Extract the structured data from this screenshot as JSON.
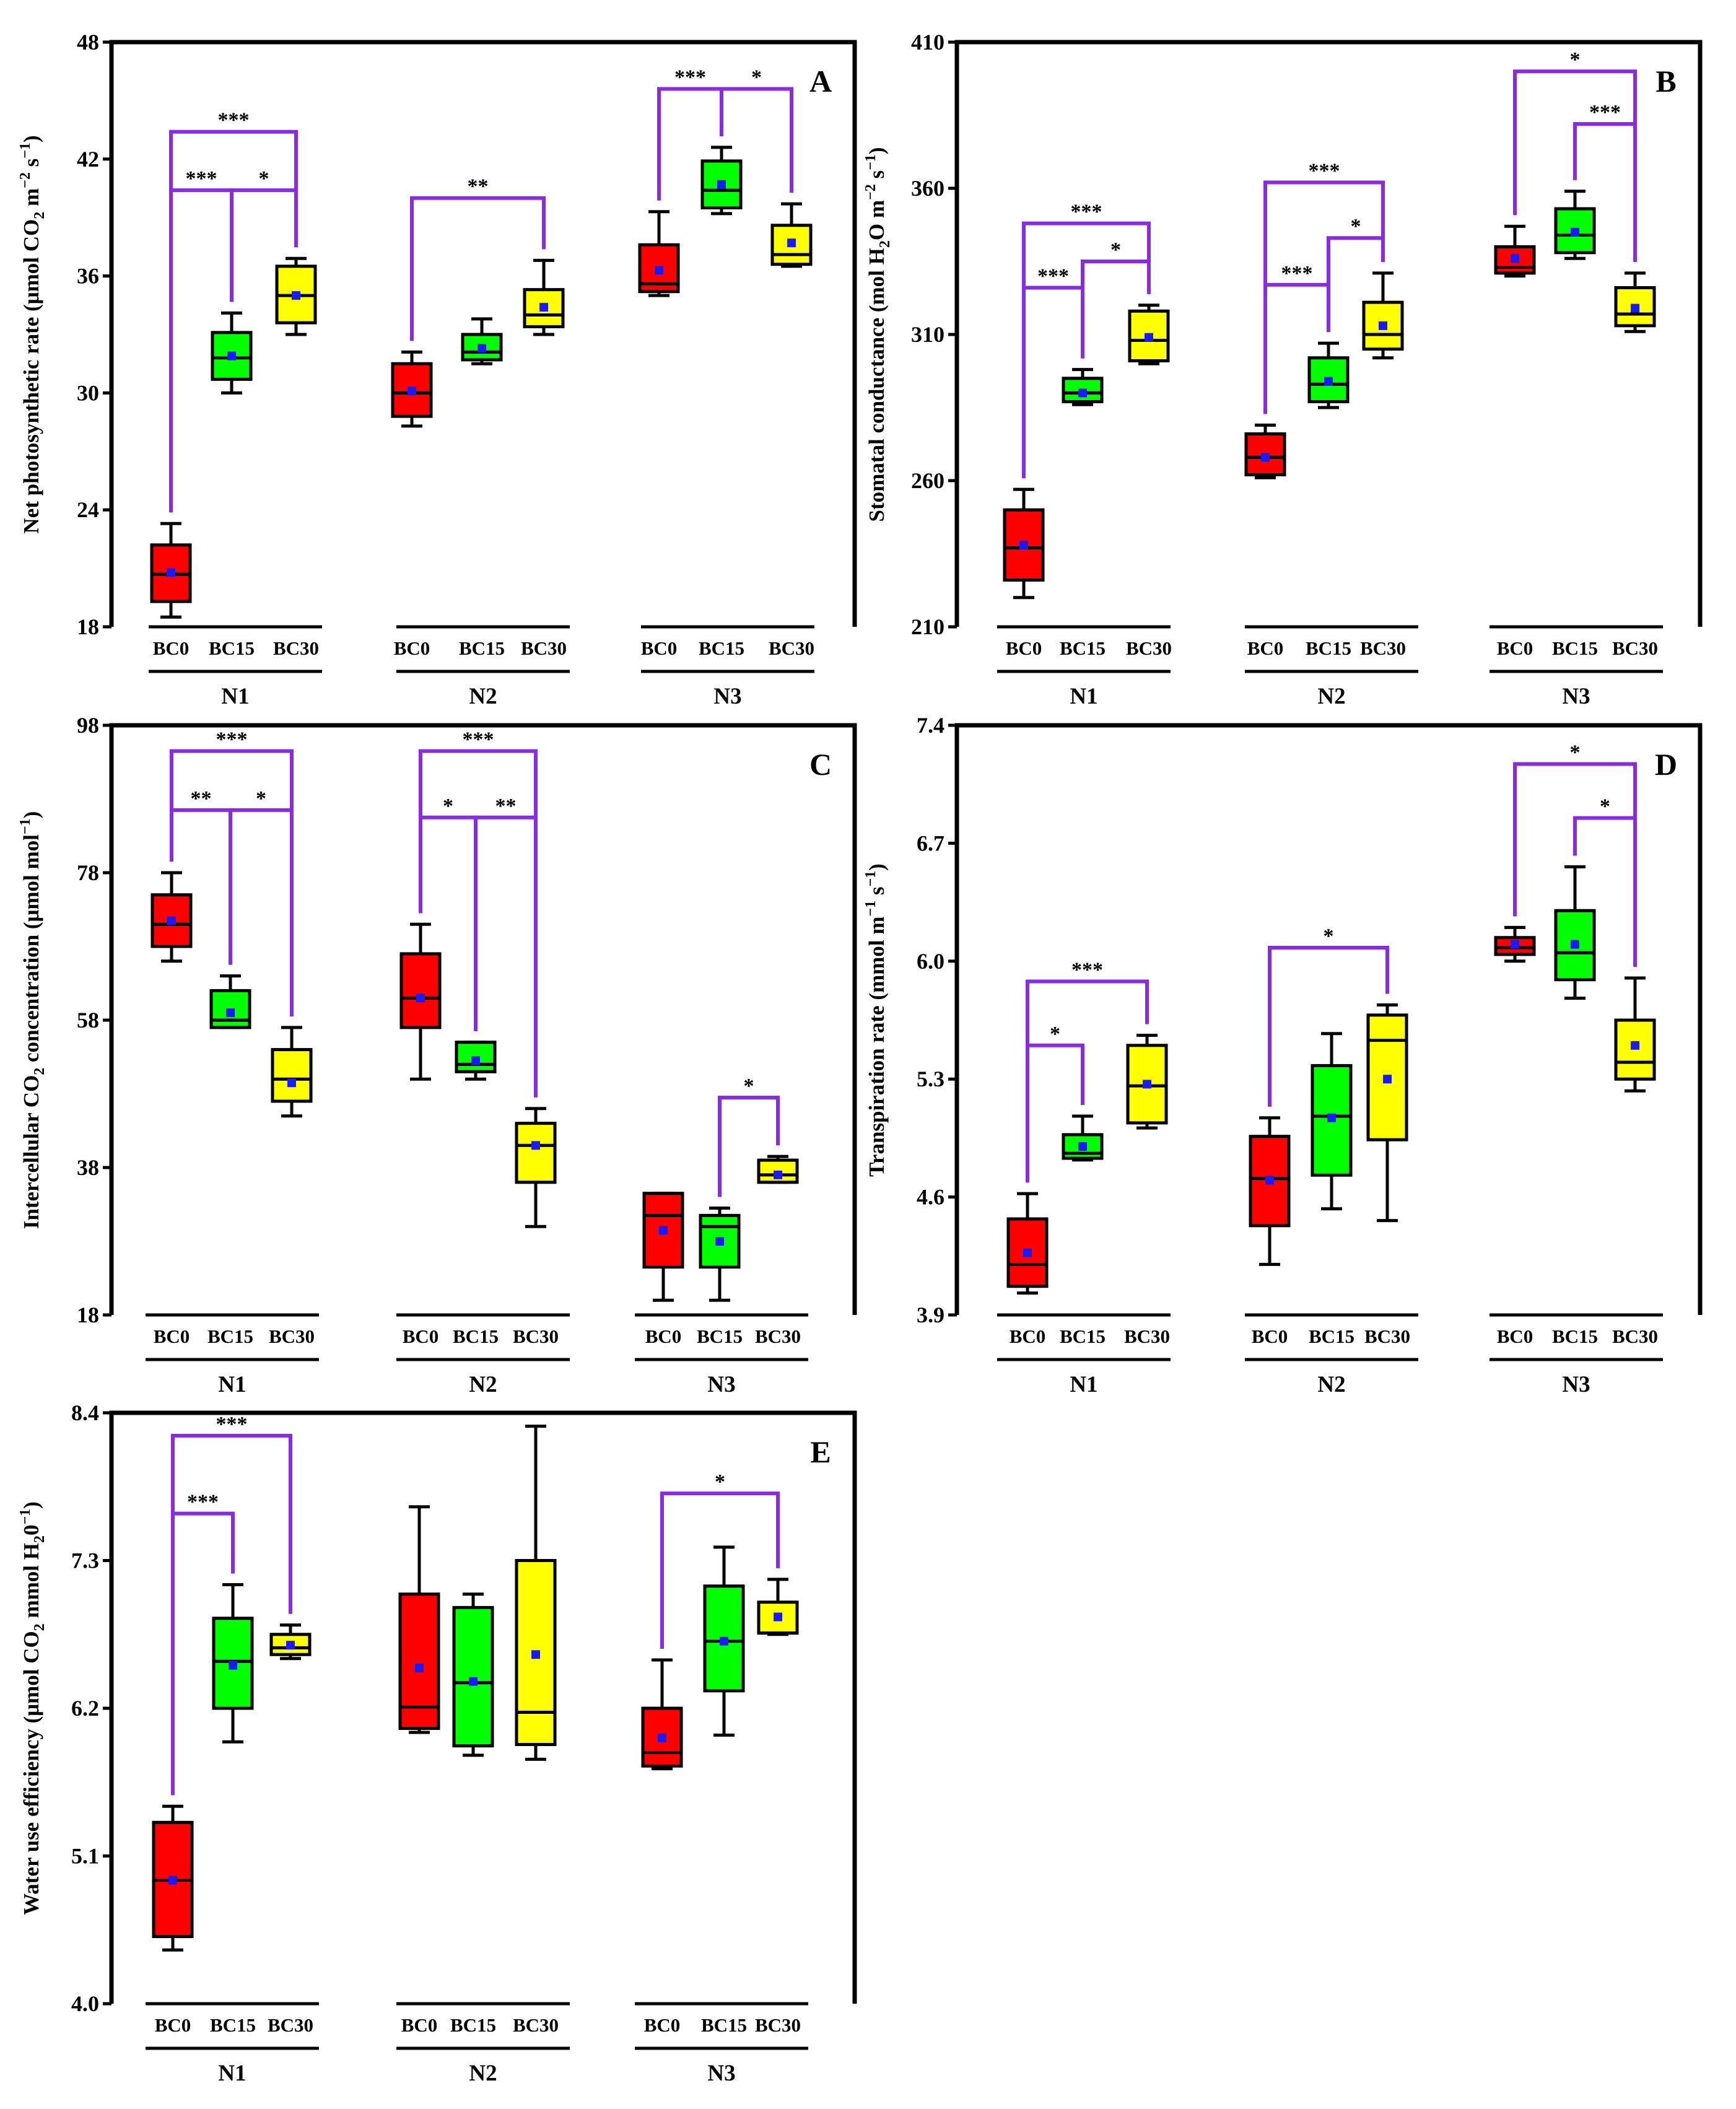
{
  "chart_data": [
    {
      "type": "box",
      "panel_label": "A",
      "ylabel": {
        "pre": "Net photosynthetic rate (μmol CO",
        "sub": "2",
        "mid": " m",
        "sup1": "−2",
        "mid2": " s",
        "sup2": "−1",
        "post": ")"
      },
      "ylim": [
        18,
        48
      ],
      "yticks": [
        18,
        24,
        30,
        36,
        42,
        48
      ],
      "groups": [
        "N1",
        "N2",
        "N3"
      ],
      "categories": [
        "BC0",
        "BC15",
        "BC30"
      ],
      "colors": {
        "BC0": "#ff0000",
        "BC15": "#00ff00",
        "BC30": "#ffff00"
      },
      "boxes": [
        {
          "group": 0,
          "cat": 0,
          "wlo": 18.5,
          "q1": 19.3,
          "median": 20.7,
          "q3": 22.2,
          "whi": 23.3,
          "mean": 20.8
        },
        {
          "group": 0,
          "cat": 1,
          "wlo": 30.0,
          "q1": 30.7,
          "median": 31.8,
          "q3": 33.1,
          "whi": 34.1,
          "mean": 31.9
        },
        {
          "group": 0,
          "cat": 2,
          "wlo": 33.0,
          "q1": 33.6,
          "median": 35.0,
          "q3": 36.5,
          "whi": 36.9,
          "mean": 35.0
        },
        {
          "group": 1,
          "cat": 0,
          "wlo": 28.3,
          "q1": 28.8,
          "median": 30.0,
          "q3": 31.5,
          "whi": 32.1,
          "mean": 30.1
        },
        {
          "group": 1,
          "cat": 1,
          "wlo": 31.5,
          "q1": 31.7,
          "median": 32.1,
          "q3": 33.0,
          "whi": 33.8,
          "mean": 32.3
        },
        {
          "group": 1,
          "cat": 2,
          "wlo": 33.0,
          "q1": 33.4,
          "median": 34.0,
          "q3": 35.3,
          "whi": 36.8,
          "mean": 34.4
        },
        {
          "group": 2,
          "cat": 0,
          "wlo": 35.0,
          "q1": 35.2,
          "median": 35.6,
          "q3": 37.6,
          "whi": 39.3,
          "mean": 36.3
        },
        {
          "group": 2,
          "cat": 1,
          "wlo": 39.2,
          "q1": 39.5,
          "median": 40.4,
          "q3": 41.9,
          "whi": 42.6,
          "mean": 40.7
        },
        {
          "group": 2,
          "cat": 2,
          "wlo": 36.5,
          "q1": 36.6,
          "median": 37.1,
          "q3": 38.6,
          "whi": 39.7,
          "mean": 37.7
        }
      ],
      "brackets": [
        {
          "from": [
            0,
            0
          ],
          "to": [
            0,
            2
          ],
          "y": 43.4,
          "label": "***"
        },
        {
          "from": [
            0,
            0
          ],
          "to": [
            0,
            1
          ],
          "y": 40.4,
          "label": "***"
        },
        {
          "from": [
            0,
            1
          ],
          "to": [
            0,
            2
          ],
          "y": 40.4,
          "label": "*"
        },
        {
          "from": [
            1,
            0
          ],
          "to": [
            1,
            2
          ],
          "y": 40.0,
          "label": "**"
        },
        {
          "from": [
            2,
            0
          ],
          "to": [
            2,
            1
          ],
          "y": 45.6,
          "label": "***"
        },
        {
          "from": [
            2,
            1
          ],
          "to": [
            2,
            2
          ],
          "y": 45.6,
          "label": "*"
        }
      ]
    },
    {
      "type": "box",
      "panel_label": "B",
      "ylabel": {
        "pre": "Stomatal conductance (mol H",
        "sub": "2",
        "mid": "O m",
        "sup1": "−2",
        "mid2": " s",
        "sup2": "−1",
        "post": ")"
      },
      "ylim": [
        210,
        410
      ],
      "yticks": [
        210,
        260,
        310,
        360,
        410
      ],
      "groups": [
        "N1",
        "N2",
        "N3"
      ],
      "categories": [
        "BC0",
        "BC15",
        "BC30"
      ],
      "colors": {
        "BC0": "#ff0000",
        "BC15": "#00ff00",
        "BC30": "#ffff00"
      },
      "boxes": [
        {
          "group": 0,
          "cat": 0,
          "wlo": 220,
          "q1": 226,
          "median": 237,
          "q3": 250,
          "whi": 257,
          "mean": 238
        },
        {
          "group": 0,
          "cat": 1,
          "wlo": 286,
          "q1": 287,
          "median": 290,
          "q3": 295,
          "whi": 298,
          "mean": 290
        },
        {
          "group": 0,
          "cat": 2,
          "wlo": 300,
          "q1": 301,
          "median": 308,
          "q3": 318,
          "whi": 320,
          "mean": 309
        },
        {
          "group": 1,
          "cat": 0,
          "wlo": 261,
          "q1": 262,
          "median": 268,
          "q3": 276,
          "whi": 279,
          "mean": 268
        },
        {
          "group": 1,
          "cat": 1,
          "wlo": 285,
          "q1": 287,
          "median": 293,
          "q3": 302,
          "whi": 307,
          "mean": 294
        },
        {
          "group": 1,
          "cat": 2,
          "wlo": 302,
          "q1": 305,
          "median": 310,
          "q3": 321,
          "whi": 331,
          "mean": 313
        },
        {
          "group": 2,
          "cat": 0,
          "wlo": 330,
          "q1": 331,
          "median": 333,
          "q3": 340,
          "whi": 347,
          "mean": 336
        },
        {
          "group": 2,
          "cat": 1,
          "wlo": 336,
          "q1": 338,
          "median": 344,
          "q3": 353,
          "whi": 359,
          "mean": 345
        },
        {
          "group": 2,
          "cat": 2,
          "wlo": 311,
          "q1": 313,
          "median": 317,
          "q3": 326,
          "whi": 331,
          "mean": 319
        }
      ],
      "brackets": [
        {
          "from": [
            0,
            0
          ],
          "to": [
            0,
            2
          ],
          "y": 348,
          "label": "***"
        },
        {
          "from": [
            0,
            0
          ],
          "to": [
            0,
            1
          ],
          "y": 326,
          "label": "***"
        },
        {
          "from": [
            0,
            1
          ],
          "to": [
            0,
            2
          ],
          "y": 335,
          "label": "*"
        },
        {
          "from": [
            1,
            0
          ],
          "to": [
            1,
            2
          ],
          "y": 362,
          "label": "***"
        },
        {
          "from": [
            1,
            0
          ],
          "to": [
            1,
            1
          ],
          "y": 327,
          "label": "***"
        },
        {
          "from": [
            1,
            1
          ],
          "to": [
            1,
            2
          ],
          "y": 343,
          "label": "*"
        },
        {
          "from": [
            2,
            0
          ],
          "to": [
            2,
            2
          ],
          "y": 400,
          "label": "*"
        },
        {
          "from": [
            2,
            1
          ],
          "to": [
            2,
            2
          ],
          "y": 382,
          "label": "***"
        }
      ]
    },
    {
      "type": "box",
      "panel_label": "C",
      "ylabel": {
        "pre": "Intercellular CO",
        "sub": "2",
        "mid": " concentration (μmol mol",
        "sup1": "−1",
        "mid2": "",
        "sup2": "",
        "post": ")"
      },
      "ylim": [
        18,
        98
      ],
      "yticks": [
        18,
        38,
        58,
        78,
        98
      ],
      "groups": [
        "N1",
        "N2",
        "N3"
      ],
      "categories": [
        "BC0",
        "BC15",
        "BC30"
      ],
      "colors": {
        "BC0": "#ff0000",
        "BC15": "#00ff00",
        "BC30": "#ffff00"
      },
      "boxes": [
        {
          "group": 0,
          "cat": 0,
          "wlo": 66,
          "q1": 68,
          "median": 71,
          "q3": 75,
          "whi": 78,
          "mean": 71.5
        },
        {
          "group": 0,
          "cat": 1,
          "wlo": 57,
          "q1": 57,
          "median": 58,
          "q3": 62,
          "whi": 64,
          "mean": 59
        },
        {
          "group": 0,
          "cat": 2,
          "wlo": 45,
          "q1": 47,
          "median": 50,
          "q3": 54,
          "whi": 57,
          "mean": 49.5
        },
        {
          "group": 1,
          "cat": 0,
          "wlo": 50,
          "q1": 57,
          "median": 61,
          "q3": 67,
          "whi": 71,
          "mean": 61
        },
        {
          "group": 1,
          "cat": 1,
          "wlo": 50,
          "q1": 51,
          "median": 52,
          "q3": 55,
          "whi": 55,
          "mean": 52.5
        },
        {
          "group": 1,
          "cat": 2,
          "wlo": 30,
          "q1": 36,
          "median": 41,
          "q3": 44,
          "whi": 46,
          "mean": 41
        },
        {
          "group": 2,
          "cat": 0,
          "wlo": 20,
          "q1": 24.5,
          "median": 31.5,
          "q3": 34.5,
          "whi": 34.5,
          "mean": 29.5
        },
        {
          "group": 2,
          "cat": 1,
          "wlo": 20,
          "q1": 24.5,
          "median": 30,
          "q3": 31.5,
          "whi": 32.5,
          "mean": 28
        },
        {
          "group": 2,
          "cat": 2,
          "wlo": 36,
          "q1": 36,
          "median": 37,
          "q3": 39,
          "whi": 39.5,
          "mean": 37
        }
      ],
      "brackets": [
        {
          "from": [
            0,
            0
          ],
          "to": [
            0,
            2
          ],
          "y": 94.5,
          "label": "***"
        },
        {
          "from": [
            0,
            0
          ],
          "to": [
            0,
            1
          ],
          "y": 86.5,
          "label": "**"
        },
        {
          "from": [
            0,
            1
          ],
          "to": [
            0,
            2
          ],
          "y": 86.5,
          "label": "*"
        },
        {
          "from": [
            1,
            0
          ],
          "to": [
            1,
            2
          ],
          "y": 94.5,
          "label": "***"
        },
        {
          "from": [
            1,
            0
          ],
          "to": [
            1,
            1
          ],
          "y": 85.5,
          "label": "*"
        },
        {
          "from": [
            1,
            1
          ],
          "to": [
            1,
            2
          ],
          "y": 85.5,
          "label": "**"
        },
        {
          "from": [
            2,
            1
          ],
          "to": [
            2,
            2
          ],
          "y": 47.5,
          "label": "*"
        }
      ]
    },
    {
      "type": "box",
      "panel_label": "D",
      "ylabel": {
        "pre": "Transpiration rate (mmol m",
        "sup1": "−1",
        "sub": "",
        "mid": "",
        "mid2": " s",
        "sup2": "−1",
        "post": ")"
      },
      "ylim": [
        3.9,
        7.4
      ],
      "yticks": [
        3.9,
        4.6,
        5.3,
        6.0,
        6.7,
        7.4
      ],
      "groups": [
        "N1",
        "N2",
        "N3"
      ],
      "categories": [
        "BC0",
        "BC15",
        "BC30"
      ],
      "colors": {
        "BC0": "#ff0000",
        "BC15": "#00ff00",
        "BC30": "#ffff00"
      },
      "boxes": [
        {
          "group": 0,
          "cat": 0,
          "wlo": 4.03,
          "q1": 4.07,
          "median": 4.2,
          "q3": 4.47,
          "whi": 4.62,
          "mean": 4.27
        },
        {
          "group": 0,
          "cat": 1,
          "wlo": 4.82,
          "q1": 4.83,
          "median": 4.86,
          "q3": 4.97,
          "whi": 5.08,
          "mean": 4.9
        },
        {
          "group": 0,
          "cat": 2,
          "wlo": 5.01,
          "q1": 5.04,
          "median": 5.26,
          "q3": 5.5,
          "whi": 5.56,
          "mean": 5.27
        },
        {
          "group": 1,
          "cat": 0,
          "wlo": 4.2,
          "q1": 4.43,
          "median": 4.71,
          "q3": 4.96,
          "whi": 5.07,
          "mean": 4.7
        },
        {
          "group": 1,
          "cat": 1,
          "wlo": 4.53,
          "q1": 4.73,
          "median": 5.08,
          "q3": 5.38,
          "whi": 5.57,
          "mean": 5.07
        },
        {
          "group": 1,
          "cat": 2,
          "wlo": 4.46,
          "q1": 4.94,
          "median": 5.53,
          "q3": 5.68,
          "whi": 5.74,
          "mean": 5.3
        },
        {
          "group": 2,
          "cat": 0,
          "wlo": 6.0,
          "q1": 6.04,
          "median": 6.08,
          "q3": 6.14,
          "whi": 6.2,
          "mean": 6.1
        },
        {
          "group": 2,
          "cat": 1,
          "wlo": 5.78,
          "q1": 5.89,
          "median": 6.05,
          "q3": 6.3,
          "whi": 6.56,
          "mean": 6.1
        },
        {
          "group": 2,
          "cat": 2,
          "wlo": 5.23,
          "q1": 5.3,
          "median": 5.4,
          "q3": 5.65,
          "whi": 5.9,
          "mean": 5.5
        }
      ],
      "brackets": [
        {
          "from": [
            0,
            0
          ],
          "to": [
            0,
            2
          ],
          "y": 5.88,
          "label": "***"
        },
        {
          "from": [
            0,
            0
          ],
          "to": [
            0,
            1
          ],
          "y": 5.5,
          "label": "*"
        },
        {
          "from": [
            1,
            0
          ],
          "to": [
            1,
            2
          ],
          "y": 6.08,
          "label": "*"
        },
        {
          "from": [
            2,
            0
          ],
          "to": [
            2,
            2
          ],
          "y": 7.17,
          "label": "*"
        },
        {
          "from": [
            2,
            1
          ],
          "to": [
            2,
            2
          ],
          "y": 6.85,
          "label": "*"
        }
      ]
    },
    {
      "type": "box",
      "panel_label": "E",
      "ylabel": {
        "pre": "Water use efficiency (μmol CO",
        "sub": "2",
        "mid": " mmol H",
        "sub2": "2",
        "mid2": "0",
        "sup2": "−1",
        "sup1": "",
        "post": ")"
      },
      "ylim": [
        4.0,
        8.4
      ],
      "yticks": [
        4.0,
        5.1,
        6.2,
        7.3,
        8.4
      ],
      "groups": [
        "N1",
        "N2",
        "N3"
      ],
      "categories": [
        "BC0",
        "BC15",
        "BC30"
      ],
      "colors": {
        "BC0": "#ff0000",
        "BC15": "#00ff00",
        "BC30": "#ffff00"
      },
      "boxes": [
        {
          "group": 0,
          "cat": 0,
          "wlo": 4.4,
          "q1": 4.5,
          "median": 4.92,
          "q3": 5.35,
          "whi": 5.47,
          "mean": 4.92
        },
        {
          "group": 0,
          "cat": 1,
          "wlo": 5.95,
          "q1": 6.2,
          "median": 6.55,
          "q3": 6.87,
          "whi": 7.12,
          "mean": 6.52
        },
        {
          "group": 0,
          "cat": 2,
          "wlo": 6.57,
          "q1": 6.6,
          "median": 6.65,
          "q3": 6.75,
          "whi": 6.82,
          "mean": 6.67
        },
        {
          "group": 1,
          "cat": 0,
          "wlo": 6.02,
          "q1": 6.05,
          "median": 6.21,
          "q3": 7.05,
          "whi": 7.7,
          "mean": 6.5
        },
        {
          "group": 1,
          "cat": 1,
          "wlo": 5.85,
          "q1": 5.92,
          "median": 6.39,
          "q3": 6.95,
          "whi": 7.05,
          "mean": 6.4
        },
        {
          "group": 1,
          "cat": 2,
          "wlo": 5.82,
          "q1": 5.93,
          "median": 6.17,
          "q3": 7.3,
          "whi": 8.3,
          "mean": 6.6
        },
        {
          "group": 2,
          "cat": 0,
          "wlo": 5.75,
          "q1": 5.77,
          "median": 5.87,
          "q3": 6.2,
          "whi": 6.56,
          "mean": 5.98
        },
        {
          "group": 2,
          "cat": 1,
          "wlo": 6.0,
          "q1": 6.33,
          "median": 6.7,
          "q3": 7.11,
          "whi": 7.4,
          "mean": 6.7
        },
        {
          "group": 2,
          "cat": 2,
          "wlo": 6.75,
          "q1": 6.76,
          "median": 6.76,
          "q3": 6.99,
          "whi": 7.16,
          "mean": 6.88
        }
      ],
      "brackets": [
        {
          "from": [
            0,
            0
          ],
          "to": [
            0,
            2
          ],
          "y": 8.23,
          "label": "***"
        },
        {
          "from": [
            0,
            0
          ],
          "to": [
            0,
            1
          ],
          "y": 7.65,
          "label": "***"
        },
        {
          "from": [
            2,
            0
          ],
          "to": [
            2,
            2
          ],
          "y": 7.8,
          "label": "*"
        }
      ]
    }
  ]
}
